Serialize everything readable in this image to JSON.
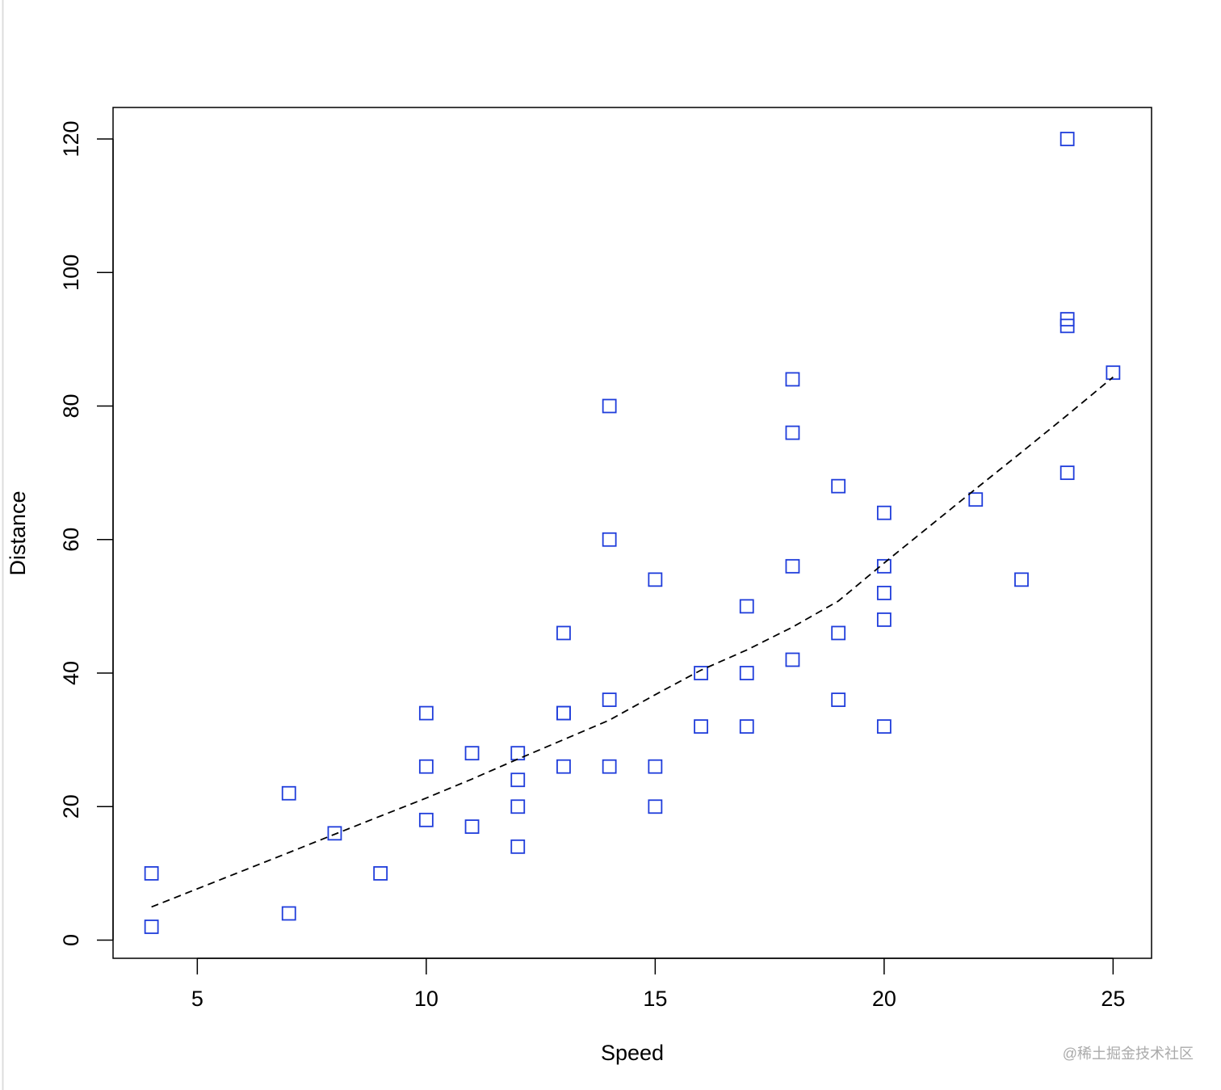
{
  "chart_data": {
    "type": "scatter",
    "x_label": "Speed",
    "y_label": "Distance",
    "x": [
      4,
      4,
      7,
      7,
      8,
      9,
      10,
      10,
      10,
      11,
      11,
      12,
      12,
      12,
      12,
      13,
      13,
      13,
      13,
      14,
      14,
      14,
      14,
      15,
      15,
      15,
      16,
      16,
      17,
      17,
      17,
      18,
      18,
      18,
      18,
      19,
      19,
      19,
      20,
      20,
      20,
      20,
      20,
      22,
      23,
      24,
      24,
      24,
      24,
      25
    ],
    "values": [
      2,
      10,
      4,
      22,
      16,
      10,
      18,
      26,
      34,
      17,
      28,
      14,
      20,
      24,
      28,
      26,
      34,
      34,
      46,
      26,
      36,
      60,
      80,
      20,
      26,
      54,
      32,
      40,
      32,
      40,
      50,
      42,
      56,
      76,
      84,
      36,
      46,
      68,
      32,
      48,
      52,
      56,
      64,
      66,
      54,
      70,
      92,
      93,
      120,
      85
    ],
    "color": "#1f3ddb",
    "smooth": {
      "x": [
        4,
        7,
        8,
        9,
        10,
        11,
        12,
        13,
        14,
        15,
        16,
        17,
        18,
        19,
        20,
        22,
        23,
        24,
        25
      ],
      "values": [
        4.97,
        13.12,
        15.86,
        18.58,
        21.28,
        24.13,
        27.12,
        30.03,
        32.96,
        36.76,
        40.44,
        43.46,
        46.89,
        50.79,
        56.49,
        67.59,
        73.08,
        78.64,
        84.33
      ],
      "color": "#000000",
      "dashed": true
    },
    "xlim": [
      3.16,
      25.84
    ],
    "ylim": [
      -2.72,
      124.72
    ],
    "xticks": [
      5,
      10,
      15,
      20,
      25
    ],
    "yticks": [
      0,
      20,
      40,
      60,
      80,
      100,
      120
    ]
  },
  "watermark": "@稀土掘金技术社区"
}
